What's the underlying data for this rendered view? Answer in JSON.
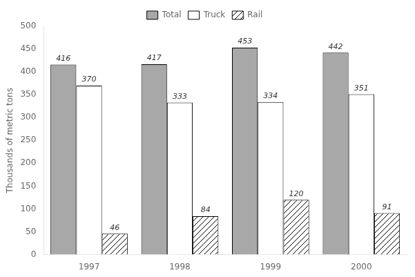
{
  "chart_data": {
    "type": "bar",
    "categories": [
      "1997",
      "1998",
      "1999",
      "2000"
    ],
    "series": [
      {
        "name": "Total",
        "color": "#a8a8a8",
        "values": [
          416,
          417,
          453,
          442
        ]
      },
      {
        "name": "Truck",
        "color": "#ffffff",
        "values": [
          370,
          333,
          334,
          351
        ]
      },
      {
        "name": "Rail",
        "color": "#ffffff",
        "values": [
          46,
          84,
          120,
          91
        ]
      }
    ],
    "ylabel": "Thousands of metric tons",
    "ylim": [
      0,
      500
    ],
    "yticks": [
      0,
      50,
      100,
      150,
      200,
      250,
      300,
      350,
      400,
      450,
      500
    ],
    "grid": false,
    "legend": "top",
    "data_labels": true
  }
}
